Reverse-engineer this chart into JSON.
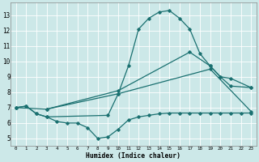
{
  "xlabel": "Humidex (Indice chaleur)",
  "bg_color": "#cce8e8",
  "grid_color": "#ffffff",
  "line_color": "#1a7070",
  "xlim": [
    -0.5,
    23.5
  ],
  "ylim": [
    4.5,
    13.8
  ],
  "xticks": [
    0,
    1,
    2,
    3,
    4,
    5,
    6,
    7,
    8,
    9,
    10,
    11,
    12,
    13,
    14,
    15,
    16,
    17,
    18,
    19,
    20,
    21,
    22,
    23
  ],
  "yticks": [
    5,
    6,
    7,
    8,
    9,
    10,
    11,
    12,
    13
  ],
  "line1_x": [
    0,
    1,
    2,
    3,
    4,
    5,
    6,
    7,
    8,
    9,
    10,
    11,
    12,
    13,
    14,
    15,
    16,
    17,
    18,
    19,
    20,
    21,
    22,
    23
  ],
  "line1_y": [
    7.0,
    7.1,
    6.6,
    6.4,
    6.1,
    6.0,
    6.0,
    5.7,
    5.0,
    5.1,
    5.6,
    6.2,
    6.4,
    6.5,
    6.6,
    6.65,
    6.65,
    6.65,
    6.65,
    6.65,
    6.65,
    6.65,
    6.65,
    6.65
  ],
  "line2_x": [
    0,
    1,
    2,
    3,
    9,
    10,
    11,
    12,
    13,
    14,
    15,
    16,
    17,
    18,
    19,
    20,
    21,
    23
  ],
  "line2_y": [
    7.0,
    7.1,
    6.6,
    6.4,
    6.5,
    7.9,
    9.7,
    12.1,
    12.8,
    13.2,
    13.3,
    12.8,
    12.1,
    10.5,
    9.7,
    9.0,
    8.4,
    8.3
  ],
  "line3_x": [
    0,
    3,
    10,
    17,
    19,
    20,
    21,
    23
  ],
  "line3_y": [
    7.0,
    6.9,
    8.1,
    10.6,
    9.7,
    9.0,
    8.9,
    8.3
  ],
  "line4_x": [
    3,
    10,
    19,
    23
  ],
  "line4_y": [
    6.9,
    7.9,
    9.5,
    6.75
  ]
}
